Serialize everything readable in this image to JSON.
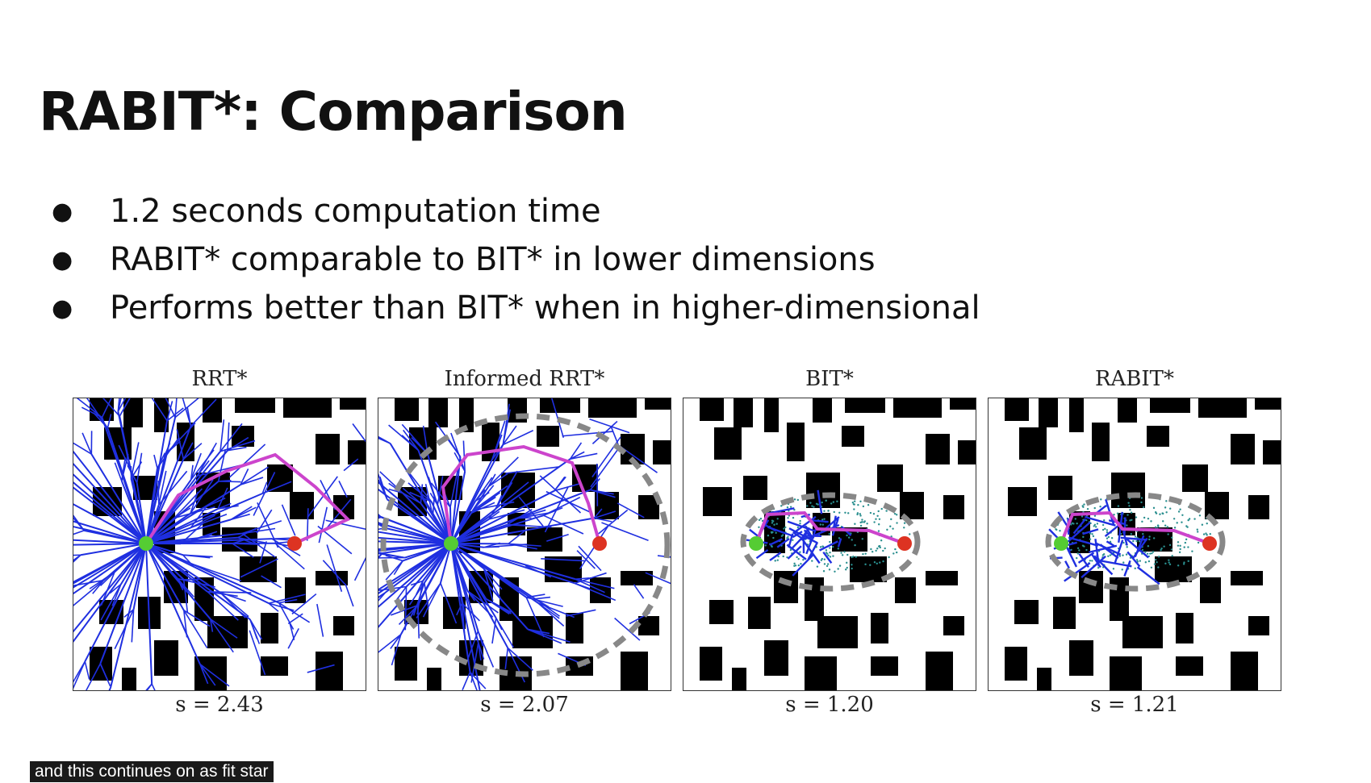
{
  "slide": {
    "title": "RABIT*: Comparison",
    "bullets": [
      "1.2 seconds computation time",
      "RABIT* comparable to BIT* in lower dimensions",
      "Performs better than BIT* when in higher-dimensional"
    ]
  },
  "figure": {
    "panels": [
      {
        "title": "RRT*",
        "cost_label": "s = 2.43",
        "tree": "dense",
        "ellipse": false
      },
      {
        "title": "Informed RRT*",
        "cost_label": "s = 2.07",
        "tree": "dense",
        "ellipse": true
      },
      {
        "title": "BIT*",
        "cost_label": "s = 1.20",
        "tree": "compact",
        "ellipse": true
      },
      {
        "title": "RABIT*",
        "cost_label": "s = 1.21",
        "tree": "compact",
        "ellipse": true
      }
    ],
    "colors": {
      "tree": "#1f2fe0",
      "path": "#cc44cc",
      "start": "#55cc33",
      "goal": "#dd3322",
      "obstacle": "#000000",
      "ellipse": "#888888",
      "samples": "#2a8f8f"
    }
  },
  "caption": {
    "text": "and this continues on as fit star"
  }
}
